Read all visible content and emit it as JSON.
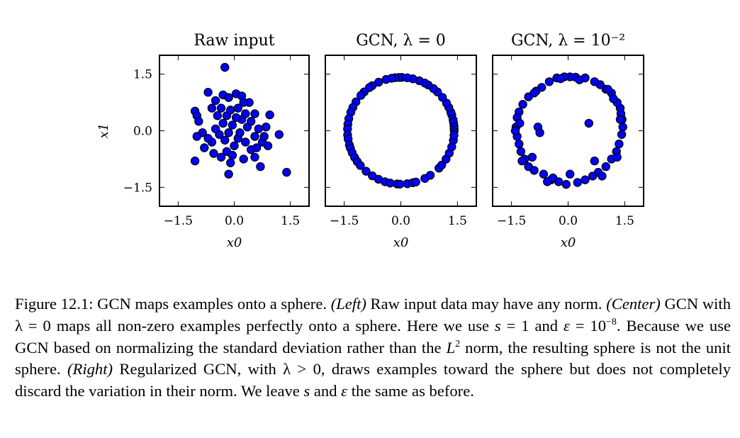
{
  "chart_data": [
    {
      "type": "scatter",
      "title": "Raw input",
      "xlabel": "x0",
      "ylabel": "x1",
      "xlim": [
        -2.0,
        2.0
      ],
      "ylim": [
        -2.0,
        2.0
      ],
      "xticks": [
        "−1.5",
        "0.0",
        "1.5"
      ],
      "yticks": [
        "1.5",
        "0.0",
        "−1.5"
      ],
      "color": "#0000ff",
      "points": [
        [
          -0.25,
          1.68
        ],
        [
          -1.05,
          0.52
        ],
        [
          -1.0,
          0.4
        ],
        [
          -0.95,
          0.25
        ],
        [
          -0.7,
          1.02
        ],
        [
          -0.85,
          -0.05
        ],
        [
          -1.0,
          -0.15
        ],
        [
          -0.6,
          0.6
        ],
        [
          -0.5,
          0.8
        ],
        [
          -0.3,
          0.95
        ],
        [
          -0.15,
          0.88
        ],
        [
          0.05,
          0.98
        ],
        [
          0.2,
          0.92
        ],
        [
          0.4,
          0.75
        ],
        [
          0.55,
          0.45
        ],
        [
          0.95,
          0.42
        ],
        [
          1.2,
          -0.1
        ],
        [
          1.4,
          -1.1
        ],
        [
          0.7,
          -0.95
        ],
        [
          0.25,
          -0.75
        ],
        [
          -0.1,
          -0.85
        ],
        [
          -0.15,
          -1.15
        ],
        [
          -0.55,
          -0.6
        ],
        [
          -0.8,
          -0.45
        ],
        [
          -1.05,
          -0.8
        ],
        [
          -0.6,
          -0.3
        ],
        [
          -0.4,
          -0.1
        ],
        [
          -0.3,
          0.2
        ],
        [
          -0.2,
          0.4
        ],
        [
          -0.1,
          0.55
        ],
        [
          0.1,
          0.6
        ],
        [
          0.2,
          0.3
        ],
        [
          0.35,
          0.1
        ],
        [
          0.55,
          -0.15
        ],
        [
          0.75,
          -0.3
        ],
        [
          0.9,
          -0.4
        ],
        [
          0.65,
          0.05
        ],
        [
          0.8,
          -0.15
        ],
        [
          0.45,
          -0.5
        ],
        [
          0.3,
          -0.3
        ],
        [
          0.1,
          -0.2
        ],
        [
          0.0,
          -0.4
        ],
        [
          -0.2,
          -0.55
        ],
        [
          -0.35,
          -0.7
        ],
        [
          -0.5,
          0.05
        ],
        [
          -0.45,
          0.4
        ],
        [
          -0.25,
          -0.25
        ],
        [
          -0.05,
          0.15
        ],
        [
          0.15,
          -0.05
        ],
        [
          0.3,
          0.45
        ],
        [
          0.45,
          0.25
        ],
        [
          0.6,
          -0.45
        ],
        [
          0.85,
          0.1
        ],
        [
          -0.7,
          -0.2
        ],
        [
          -0.15,
          -0.05
        ],
        [
          0.05,
          0.35
        ],
        [
          -0.35,
          0.6
        ],
        [
          0.25,
          0.75
        ],
        [
          0.55,
          -0.7
        ],
        [
          -0.05,
          -0.65
        ]
      ]
    },
    {
      "type": "scatter",
      "title": "GCN, λ = 0",
      "xlabel": "x0",
      "xlim": [
        -2.0,
        2.0
      ],
      "ylim": [
        -2.0,
        2.0
      ],
      "xticks": [
        "−1.5",
        "0.0",
        "1.5"
      ],
      "color": "#0000ff",
      "points": [
        [
          1.414,
          0.0
        ],
        [
          1.413,
          0.063
        ],
        [
          1.408,
          0.132
        ],
        [
          1.398,
          0.213
        ],
        [
          1.384,
          0.289
        ],
        [
          1.351,
          0.418
        ],
        [
          1.326,
          0.491
        ],
        [
          1.272,
          0.617
        ],
        [
          1.209,
          0.733
        ],
        [
          1.103,
          0.885
        ],
        [
          0.97,
          1.029
        ],
        [
          0.866,
          1.118
        ],
        [
          0.725,
          1.214
        ],
        [
          0.636,
          1.263
        ],
        [
          0.49,
          1.326
        ],
        [
          0.319,
          1.377
        ],
        [
          0.172,
          1.403
        ],
        [
          0.025,
          1.414
        ],
        [
          -0.049,
          1.413
        ],
        [
          -0.148,
          1.406
        ],
        [
          -0.246,
          1.392
        ],
        [
          -0.391,
          1.359
        ],
        [
          -0.587,
          1.287
        ],
        [
          -0.758,
          1.194
        ],
        [
          -0.833,
          1.143
        ],
        [
          -0.97,
          1.029
        ],
        [
          -1.058,
          0.938
        ],
        [
          -1.188,
          0.767
        ],
        [
          -1.272,
          0.617
        ],
        [
          -1.326,
          0.491
        ],
        [
          -1.379,
          0.319
        ],
        [
          -1.403,
          0.172
        ],
        [
          -1.413,
          0.049
        ],
        [
          -1.41,
          -0.111
        ],
        [
          -1.396,
          -0.221
        ],
        [
          -1.363,
          -0.375
        ],
        [
          -1.336,
          -0.462
        ],
        [
          -1.288,
          -0.583
        ],
        [
          -1.225,
          -0.707
        ],
        [
          -1.155,
          -0.816
        ],
        [
          -1.073,
          -0.921
        ],
        [
          -0.921,
          -1.073
        ],
        [
          -0.755,
          -1.195
        ],
        [
          -0.591,
          -1.285
        ],
        [
          -0.419,
          -1.351
        ],
        [
          -0.282,
          -1.386
        ],
        [
          -0.098,
          -1.411
        ],
        [
          -0.025,
          -1.414
        ],
        [
          0.172,
          -1.403
        ],
        [
          0.319,
          -1.377
        ],
        [
          0.399,
          -1.357
        ],
        [
          0.637,
          -1.263
        ],
        [
          0.781,
          -1.179
        ],
        [
          1.01,
          -0.99
        ],
        [
          1.083,
          -0.909
        ],
        [
          1.198,
          -0.751
        ],
        [
          1.283,
          -0.594
        ],
        [
          1.348,
          -0.427
        ],
        [
          1.391,
          -0.255
        ],
        [
          1.409,
          -0.123
        ]
      ]
    },
    {
      "type": "scatter",
      "title": "GCN, λ = 10⁻²",
      "xlabel": "x0",
      "xlim": [
        -2.0,
        2.0
      ],
      "ylim": [
        -2.0,
        2.0
      ],
      "xticks": [
        "−1.5",
        "0.0",
        "1.5"
      ],
      "color": "#0000ff",
      "points": [
        [
          1.45,
          0.1
        ],
        [
          1.43,
          0.3
        ],
        [
          1.4,
          0.45
        ],
        [
          1.38,
          0.6
        ],
        [
          1.3,
          0.75
        ],
        [
          1.15,
          1.0
        ],
        [
          1.0,
          1.1
        ],
        [
          0.85,
          1.22
        ],
        [
          0.7,
          1.3
        ],
        [
          0.45,
          1.4
        ],
        [
          0.2,
          1.42
        ],
        [
          0.05,
          1.43
        ],
        [
          -0.1,
          1.43
        ],
        [
          -0.3,
          1.4
        ],
        [
          -0.5,
          1.3
        ],
        [
          -0.7,
          1.15
        ],
        [
          -0.85,
          1.05
        ],
        [
          -1.05,
          0.9
        ],
        [
          -1.2,
          0.7
        ],
        [
          -1.3,
          0.5
        ],
        [
          -1.35,
          0.35
        ],
        [
          -1.38,
          0.1
        ],
        [
          -1.35,
          -0.15
        ],
        [
          -1.3,
          -0.35
        ],
        [
          -1.25,
          -0.55
        ],
        [
          -1.15,
          -0.75
        ],
        [
          -1.05,
          -0.95
        ],
        [
          -0.9,
          -1.05
        ],
        [
          -0.65,
          -1.15
        ],
        [
          -0.45,
          -1.3
        ],
        [
          -0.25,
          -1.35
        ],
        [
          -0.05,
          -1.42
        ],
        [
          0.25,
          -1.37
        ],
        [
          0.45,
          -1.3
        ],
        [
          0.65,
          -1.2
        ],
        [
          0.8,
          -1.1
        ],
        [
          1.0,
          -0.95
        ],
        [
          1.15,
          -0.75
        ],
        [
          1.28,
          -0.55
        ],
        [
          1.35,
          -0.35
        ],
        [
          1.42,
          -0.1
        ],
        [
          -0.8,
          0.1
        ],
        [
          -0.75,
          -0.05
        ],
        [
          0.55,
          0.2
        ],
        [
          -1.28,
          0.2
        ],
        [
          -1.22,
          -0.8
        ],
        [
          -0.55,
          -1.35
        ],
        [
          0.05,
          -1.15
        ],
        [
          0.9,
          -1.2
        ],
        [
          1.2,
          0.85
        ],
        [
          -0.9,
          1.0
        ],
        [
          0.3,
          1.35
        ],
        [
          -0.2,
          1.38
        ],
        [
          1.3,
          -0.7
        ],
        [
          -1.4,
          0.0
        ],
        [
          0.7,
          -0.8
        ],
        [
          -0.95,
          -0.7
        ],
        [
          1.05,
          1.1
        ],
        [
          -0.4,
          -1.25
        ],
        [
          1.38,
          0.3
        ]
      ]
    }
  ],
  "caption": {
    "fig_label": "Figure 12.1:",
    "intro": " GCN maps examples onto a sphere. ",
    "left_label": "(Left)",
    "left_text": " Raw input data may have any norm. ",
    "center_label": "(Center)",
    "center_text_1": " GCN with ",
    "lambda_eq_0": "λ = 0",
    "center_text_2": " maps all non-zero examples perfectly onto a sphere. Here we use ",
    "s_var": "s",
    "s_eq": " = 1",
    "and_1": " and ",
    "eps_var": "ε",
    "eps_eq": " = 10",
    "eps_exp": "−8",
    "center_text_3": ". Because we use GCN based on normalizing the standard deviation rather than the ",
    "l_var": "L",
    "l_exp": "2",
    "center_text_4": " norm, the resulting sphere is not the unit sphere. ",
    "right_label": "(Right)",
    "right_text_1": " Regularized GCN, with ",
    "lambda_gt_0": "λ > 0",
    "right_text_2": ", draws examples toward the sphere but does not completely discard the variation in their norm. We leave ",
    "s_var_2": "s",
    "and_2": " and ",
    "eps_var_2": "ε",
    "right_text_3": " the same as before."
  }
}
